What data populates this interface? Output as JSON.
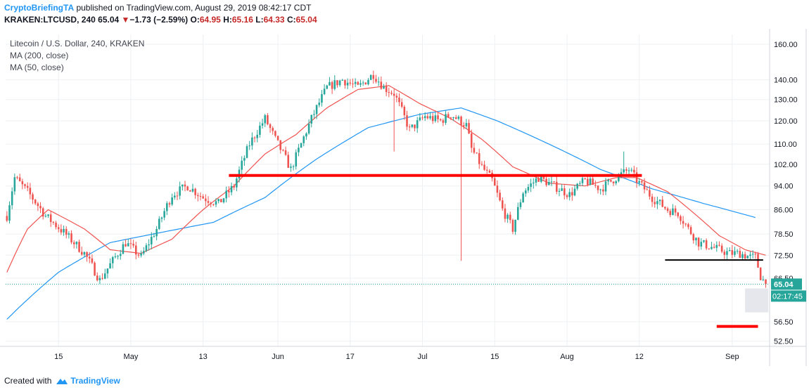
{
  "header": {
    "author": "CryptoBriefingTA",
    "published": "published on TradingView.com, August 29, 2019 08:42:17 CDT",
    "symbol_line": "KRAKEN:LTCUSD, 240",
    "last": "65.04",
    "change_arrow": "▼",
    "change": "−1.73 (−2.59%)",
    "o_label": "O:",
    "o": "64.95",
    "h_label": "H:",
    "h": "65.16",
    "l_label": "L:",
    "l": "64.33",
    "c_label": "C:",
    "c": "65.04"
  },
  "legend": {
    "title": "Litecoin / U.S. Dollar, 240, KRAKEN",
    "ma200": "MA (200, close)",
    "ma50": "MA (50, close)"
  },
  "footer": {
    "created_with": "Created with",
    "brand": "TradingView"
  },
  "colors": {
    "up": "#26a69a",
    "down": "#ef5350",
    "ma50": "#ef5350",
    "ma200": "#2196f3",
    "level": "#ff0000",
    "support": "#000000",
    "price_tag": "#26a69a"
  },
  "chart_data": {
    "type": "candlestick",
    "title": "Litecoin / U.S. Dollar, 240, KRAKEN",
    "x_tick_labels": [
      "15",
      "May",
      "13",
      "Jun",
      "17",
      "Jul",
      "15",
      "Aug",
      "12",
      "Sep"
    ],
    "y_tick_labels": [
      "160.00",
      "140.00",
      "130.00",
      "120.00",
      "110.00",
      "102.00",
      "94.00",
      "86.00",
      "78.50",
      "72.50",
      "66.50",
      "56.50",
      "52.50"
    ],
    "y_ticks": [
      160,
      140,
      130,
      120,
      110,
      102,
      94,
      86,
      78.5,
      72.5,
      66.5,
      56.5,
      52.5
    ],
    "ylim": [
      51.5,
      166
    ],
    "scale": "log",
    "price_anchors": [
      [
        0,
        84
      ],
      [
        3,
        97
      ],
      [
        8,
        92
      ],
      [
        15,
        84
      ],
      [
        22,
        79
      ],
      [
        30,
        73
      ],
      [
        36,
        66
      ],
      [
        40,
        70
      ],
      [
        46,
        76
      ],
      [
        52,
        72
      ],
      [
        58,
        80
      ],
      [
        64,
        91
      ],
      [
        70,
        94
      ],
      [
        76,
        90
      ],
      [
        82,
        88
      ],
      [
        88,
        94
      ],
      [
        94,
        110
      ],
      [
        100,
        121
      ],
      [
        104,
        112
      ],
      [
        110,
        100
      ],
      [
        114,
        110
      ],
      [
        118,
        121
      ],
      [
        124,
        136
      ],
      [
        130,
        140
      ],
      [
        136,
        136
      ],
      [
        142,
        143
      ],
      [
        146,
        136
      ],
      [
        150,
        133
      ],
      [
        156,
        116
      ],
      [
        162,
        122
      ],
      [
        168,
        120
      ],
      [
        172,
        123
      ],
      [
        178,
        118
      ],
      [
        180,
        108
      ],
      [
        184,
        101
      ],
      [
        188,
        96
      ],
      [
        192,
        86
      ],
      [
        196,
        80
      ],
      [
        200,
        92
      ],
      [
        206,
        97
      ],
      [
        212,
        94
      ],
      [
        218,
        91
      ],
      [
        224,
        96
      ],
      [
        230,
        93
      ],
      [
        236,
        97
      ],
      [
        241,
        100
      ],
      [
        244,
        96
      ],
      [
        250,
        90
      ],
      [
        256,
        86
      ],
      [
        260,
        85
      ],
      [
        264,
        80
      ],
      [
        268,
        76
      ],
      [
        272,
        75
      ],
      [
        276,
        74
      ],
      [
        280,
        73
      ],
      [
        284,
        73
      ],
      [
        288,
        72
      ],
      [
        290,
        72
      ],
      [
        292,
        67
      ],
      [
        294,
        65.04
      ]
    ],
    "ma50_anchors": [
      [
        0,
        68
      ],
      [
        8,
        80
      ],
      [
        16,
        86
      ],
      [
        30,
        80
      ],
      [
        40,
        74
      ],
      [
        52,
        73
      ],
      [
        64,
        77
      ],
      [
        76,
        86
      ],
      [
        88,
        94
      ],
      [
        100,
        106
      ],
      [
        112,
        114
      ],
      [
        124,
        126
      ],
      [
        136,
        135
      ],
      [
        148,
        137
      ],
      [
        160,
        128
      ],
      [
        172,
        121
      ],
      [
        184,
        112
      ],
      [
        196,
        101
      ],
      [
        210,
        95
      ],
      [
        224,
        94
      ],
      [
        236,
        97
      ],
      [
        244,
        97
      ],
      [
        256,
        92
      ],
      [
        266,
        85
      ],
      [
        276,
        78
      ],
      [
        286,
        74
      ],
      [
        294,
        72.5
      ]
    ],
    "ma200_anchors": [
      [
        0,
        57
      ],
      [
        20,
        68
      ],
      [
        40,
        76
      ],
      [
        60,
        79
      ],
      [
        80,
        82
      ],
      [
        100,
        90
      ],
      [
        120,
        104
      ],
      [
        140,
        117
      ],
      [
        160,
        123
      ],
      [
        176,
        126
      ],
      [
        190,
        120
      ],
      [
        210,
        110
      ],
      [
        230,
        100
      ],
      [
        250,
        93
      ],
      [
        270,
        88
      ],
      [
        290,
        83.5
      ]
    ],
    "levels": [
      {
        "name": "resistance",
        "value": 97.8,
        "from": 86,
        "to": 246
      },
      {
        "name": "support",
        "value": 71.2,
        "from": 255,
        "to": 293
      },
      {
        "name": "target",
        "value": 55.5,
        "from": 275,
        "to": 291
      }
    ],
    "last_price": "65.04",
    "countdown": "02:17:45"
  }
}
